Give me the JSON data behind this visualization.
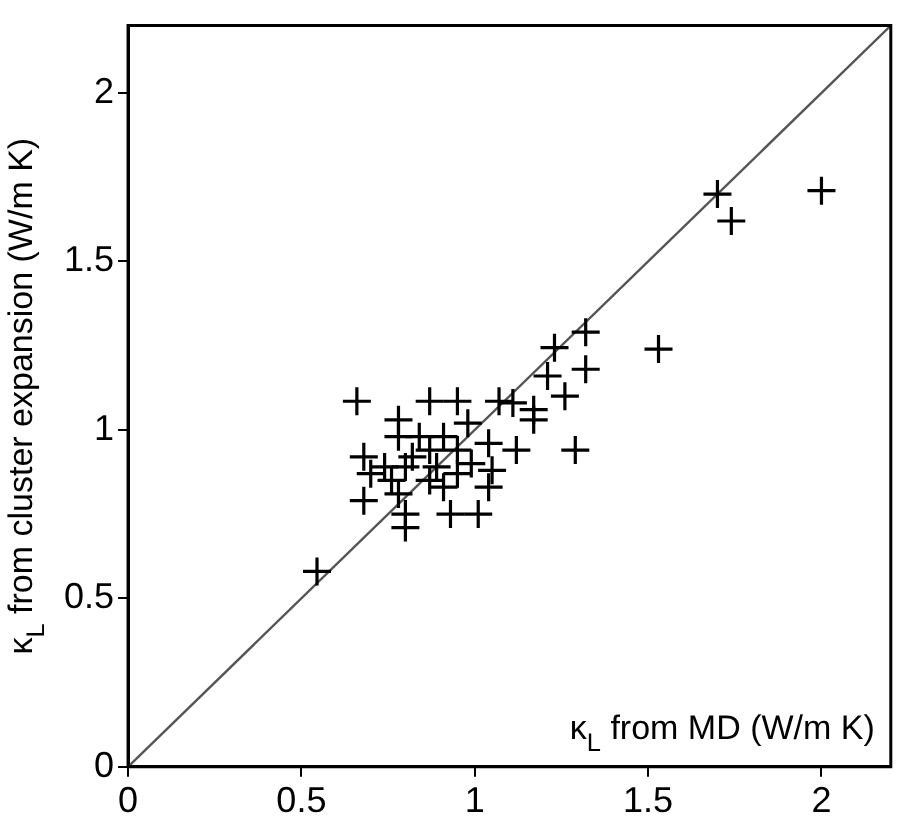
{
  "chart_data": {
    "type": "scatter",
    "xlabel": "κ$_{L}$ from MD (W/m K)",
    "ylabel": "κ$_{L}$ from cluster expansion (W/m K)",
    "xlim": [
      0,
      2.2
    ],
    "ylim": [
      0,
      2.2
    ],
    "xticks": [
      0,
      0.5,
      1,
      1.5,
      2
    ],
    "yticks": [
      0,
      0.5,
      1,
      1.5,
      2
    ],
    "grid": false,
    "legend": false,
    "marker": "cross",
    "series": [
      {
        "type": "line",
        "color": "#555555",
        "x": [
          0,
          2.2
        ],
        "values": [
          0,
          2.2
        ],
        "marker": "none"
      },
      {
        "color": "#000000",
        "x": [
          0.545,
          0.66,
          0.87,
          0.95,
          1.07,
          1.11,
          0.78,
          1.23,
          1.32,
          1.21,
          1.32,
          1.26,
          1.17,
          1.17,
          1.29,
          1.12,
          1.04,
          0.98,
          0.68,
          0.7,
          0.68,
          0.76,
          0.78,
          0.8,
          0.8,
          0.82,
          0.84,
          0.87,
          0.89,
          0.91,
          0.93,
          0.95,
          0.99,
          1.01,
          1.04,
          1.05,
          0.95,
          0.8,
          0.78,
          0.87,
          0.91,
          0.74,
          1.7,
          1.74,
          2.0,
          1.53
        ],
        "values": [
          0.58,
          1.085,
          1.085,
          1.085,
          1.085,
          1.08,
          1.03,
          1.244,
          1.29,
          1.16,
          1.18,
          1.1,
          1.06,
          1.03,
          0.94,
          0.94,
          0.96,
          1.02,
          0.92,
          0.87,
          0.79,
          0.85,
          0.81,
          0.75,
          0.71,
          0.92,
          0.98,
          0.94,
          0.89,
          0.83,
          0.75,
          0.87,
          0.9,
          0.75,
          0.83,
          0.88,
          0.94,
          0.89,
          0.98,
          0.85,
          0.98,
          0.89,
          1.7,
          1.62,
          1.71,
          1.24
        ]
      }
    ]
  }
}
